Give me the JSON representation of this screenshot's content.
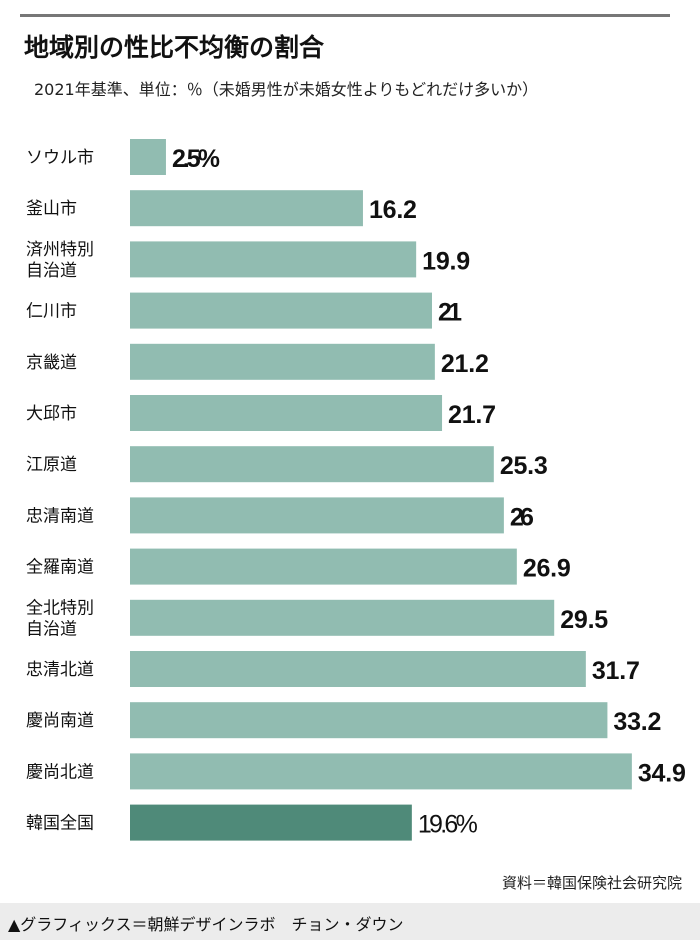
{
  "chart_data": {
    "type": "bar",
    "orientation": "horizontal",
    "title": "地域別の性比不均衡の割合",
    "subtitle": "2021年基準、単位：％（未婚男性が未婚女性よりもどれだけ多いか）",
    "categories": [
      "ソウル市",
      "釜山市",
      "済州特別\n自治道",
      "仁川市",
      "京畿道",
      "大邱市",
      "江原道",
      "忠清南道",
      "全羅南道",
      "全北特別\n自治道",
      "忠清北道",
      "慶尚南道",
      "慶尚北道",
      "韓国全国"
    ],
    "values": [
      2.5,
      16.2,
      19.9,
      21,
      21.2,
      21.7,
      25.3,
      26,
      26.9,
      29.5,
      31.7,
      33.2,
      34.9,
      19.6
    ],
    "value_labels": [
      "2.5%",
      "16.2",
      "19.9",
      "21",
      "21.2",
      "21.7",
      "25.3",
      "26",
      "26.9",
      "29.5",
      "31.7",
      "33.2",
      "34.9",
      "19.6%"
    ],
    "highlight_index": 13,
    "xlim": [
      0,
      35
    ],
    "grid": false,
    "colors": {
      "bar": "#91bcb1",
      "highlight": "#4f8a79"
    }
  },
  "source": "資料＝韓国保険社会研究院",
  "credit": "▲グラフィックス＝朝鮮デザインラボ　チョン・ダウン"
}
